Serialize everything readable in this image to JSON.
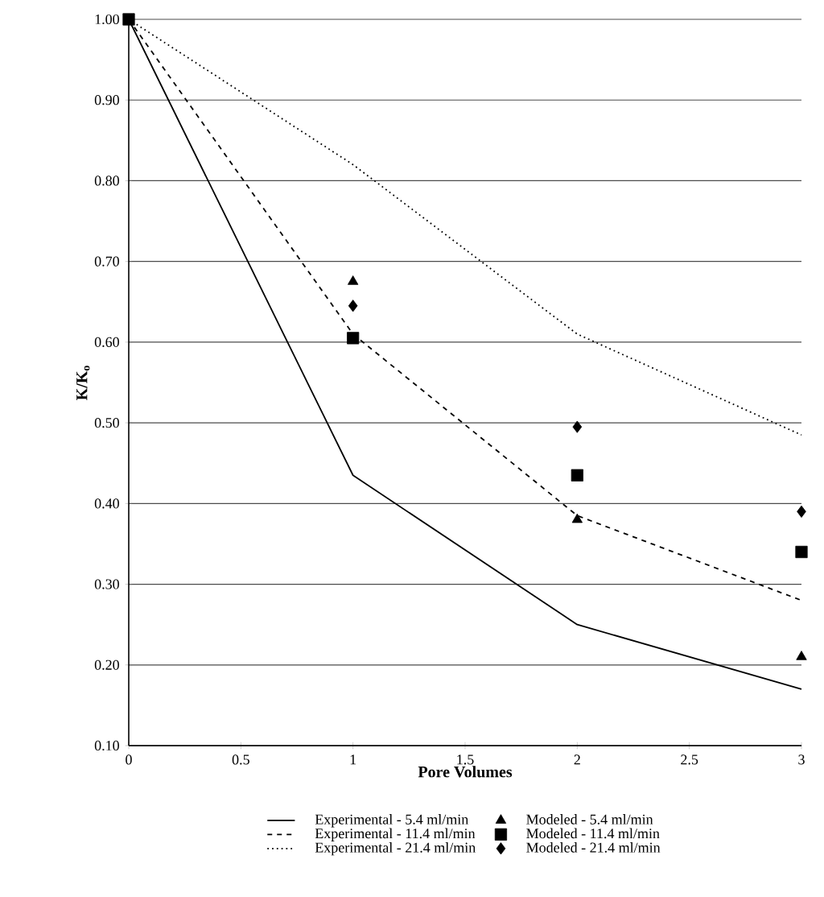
{
  "chart_data": {
    "type": "line",
    "xlabel": "Pore Volumes",
    "ylabel": "K/K$_{o}$",
    "x": [
      0,
      1,
      2,
      3
    ],
    "series": [
      {
        "name": "Experimental - 5.4 ml/min",
        "color": "#000000",
        "line_style": "solid",
        "marker": "none",
        "values": [
          1.0,
          0.435,
          0.25,
          0.17
        ]
      },
      {
        "name": "Experimental - 11.4 ml/min",
        "color": "#000000",
        "line_style": "dashed",
        "marker": "none",
        "values": [
          1.0,
          0.61,
          0.385,
          0.28
        ]
      },
      {
        "name": "Experimental - 21.4 ml/min",
        "color": "#000000",
        "line_style": "dotted",
        "marker": "none",
        "values": [
          1.0,
          0.82,
          0.61,
          0.485
        ]
      },
      {
        "name": "Modeled - 5.4 ml/min",
        "type": "scatter",
        "color": "#000000",
        "marker": "triangle",
        "values": [
          null,
          0.675,
          0.38,
          0.21
        ]
      },
      {
        "name": "Modeled - 11.4 ml/min",
        "type": "scatter",
        "color": "#000000",
        "marker": "square",
        "values": [
          1.0,
          0.605,
          0.435,
          0.34
        ]
      },
      {
        "name": "Modeled - 21.4 ml/min",
        "type": "scatter",
        "color": "#000000",
        "marker": "diamond",
        "values": [
          null,
          0.645,
          0.495,
          0.39
        ]
      }
    ],
    "xlim": [
      0,
      3
    ],
    "xticks": [
      0,
      0.5,
      1,
      1.5,
      2,
      2.5,
      3
    ],
    "ylim": [
      0.1,
      1.0
    ],
    "yticks": [
      {
        "value": 0.1,
        "label": "0.10"
      },
      {
        "value": 0.2,
        "label": "0.20"
      },
      {
        "value": 0.3,
        "label": "0.30"
      },
      {
        "value": 0.4,
        "label": "0.40"
      },
      {
        "value": 0.5,
        "label": "0.50"
      },
      {
        "value": 0.6,
        "label": "0.60"
      },
      {
        "value": 0.7,
        "label": "0.70"
      },
      {
        "value": 0.8,
        "label": "0.80"
      },
      {
        "value": 0.9,
        "label": "0.90"
      },
      {
        "value": 1.0,
        "label": "1.00"
      }
    ],
    "grid": "y",
    "legend": "bottom"
  }
}
